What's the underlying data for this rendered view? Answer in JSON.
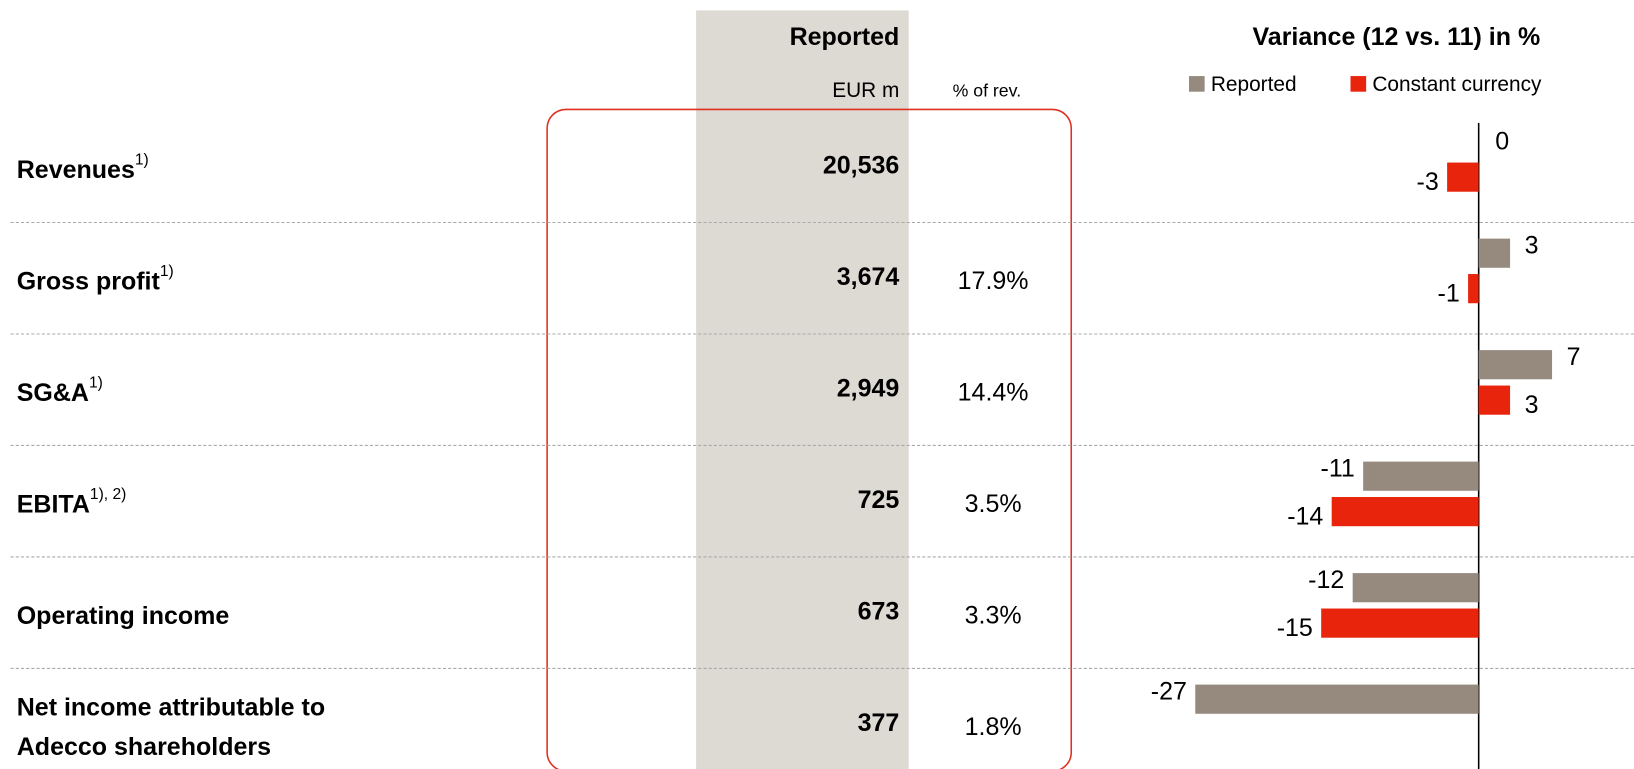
{
  "table": {
    "header": "Reported",
    "columns": [
      "EUR m",
      "% of rev."
    ],
    "rows": [
      {
        "label": [
          "Revenues"
        ],
        "note": "1)",
        "value": "20,536",
        "pct": null
      },
      {
        "label": [
          "Gross profit"
        ],
        "note": "1)",
        "value": "3,674",
        "pct": "17.9%"
      },
      {
        "label": [
          "SG&A"
        ],
        "note": "1)",
        "value": "2,949",
        "pct": "14.4%"
      },
      {
        "label": [
          "EBITA"
        ],
        "note": "1), 2)",
        "value": "725",
        "pct": "3.5%"
      },
      {
        "label": [
          "Operating income"
        ],
        "note": null,
        "value": "673",
        "pct": "3.3%"
      },
      {
        "label": [
          "Net income attributable to",
          "Adecco shareholders"
        ],
        "note": null,
        "value": "377",
        "pct": "1.8%"
      }
    ]
  },
  "chart_data": {
    "type": "bar",
    "orientation": "horizontal",
    "title": "Variance (12 vs. 11) in %",
    "categories": [
      "Revenues",
      "Gross profit",
      "SG&A",
      "EBITA",
      "Operating income",
      "Net income attributable to Adecco shareholders"
    ],
    "series": [
      {
        "name": "Reported",
        "color": "#968a7e",
        "values": [
          0,
          3,
          7,
          -11,
          -12,
          -27
        ]
      },
      {
        "name": "Constant currency",
        "color": "#e8240c",
        "values": [
          -3,
          -1,
          3,
          -14,
          -15,
          null
        ]
      }
    ],
    "xlim": [
      -27,
      15
    ]
  }
}
